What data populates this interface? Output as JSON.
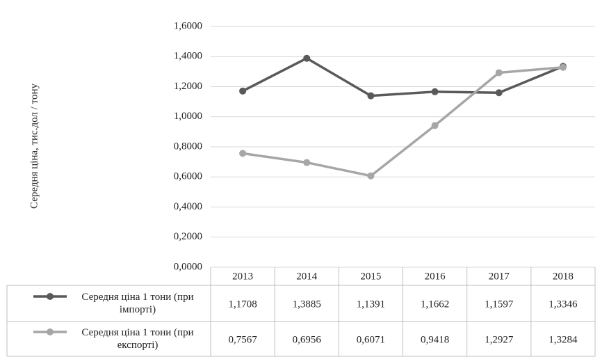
{
  "chart_data": {
    "type": "line",
    "y_label": "Середня ціна, тис.дол / тону",
    "categories": [
      "2013",
      "2014",
      "2015",
      "2016",
      "2017",
      "2018"
    ],
    "series": [
      {
        "name": "Середня ціна 1 тони (при імпорті)",
        "color": "#595959",
        "values": [
          1.1708,
          1.3885,
          1.1391,
          1.1662,
          1.1597,
          1.3346
        ],
        "value_labels": [
          "1,1708",
          "1,3885",
          "1,1391",
          "1,1662",
          "1,1597",
          "1,3346"
        ]
      },
      {
        "name": "Середня ціна 1 тони (при експорті)",
        "color": "#a6a6a6",
        "values": [
          0.7567,
          0.6956,
          0.6071,
          0.9418,
          1.2927,
          1.3284
        ],
        "value_labels": [
          "0,7567",
          "0,6956",
          "0,6071",
          "0,9418",
          "1,2927",
          "1,3284"
        ]
      }
    ],
    "ylim": [
      0,
      1.6
    ],
    "yticks": [
      {
        "value": 0,
        "label": "0,0000"
      },
      {
        "value": 0.2,
        "label": "0,2000"
      },
      {
        "value": 0.4,
        "label": "0,4000"
      },
      {
        "value": 0.6,
        "label": "0,6000"
      },
      {
        "value": 0.8,
        "label": "0,8000"
      },
      {
        "value": 1.0,
        "label": "1,0000"
      },
      {
        "value": 1.2,
        "label": "1,2000"
      },
      {
        "value": 1.4,
        "label": "1,4000"
      },
      {
        "value": 1.6,
        "label": "1,6000"
      }
    ],
    "grid": true
  }
}
